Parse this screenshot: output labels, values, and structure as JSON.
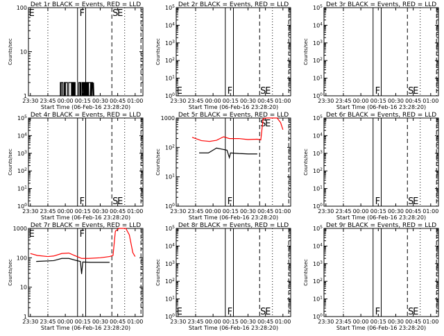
{
  "figure": {
    "x_tick_labels": [
      "23:30",
      "23:45",
      "00:00",
      "00:15",
      "00:30",
      "00:45",
      "01:00"
    ],
    "xlabel": "Start Time (06-Feb-16 23:28:20)",
    "ylabel": "Counts/sec",
    "marker_labels": {
      "F": "F",
      "S": "S",
      "E": "E"
    },
    "colors": {
      "events": "#000000",
      "lld": "#ff0000",
      "background": "#ffffff"
    }
  },
  "chart_data": [
    {
      "id": "det1r",
      "type": "line",
      "title": "Det 1r BLACK = Events, RED = LLD",
      "yscale": "log",
      "ylim": [
        1,
        100
      ],
      "ytick_labels": [
        "1",
        "10",
        "100"
      ],
      "markers": [
        "E",
        "F",
        "S",
        "E"
      ],
      "series": [
        {
          "name": "Events",
          "color": "#000000",
          "kind": "noisy-binary",
          "x_range_min": [
            -5,
            23
          ],
          "low": 1,
          "high": 2
        }
      ]
    },
    {
      "id": "det2r",
      "type": "line",
      "title": "Det 2r BLACK = Events, RED = LLD",
      "yscale": "log",
      "ylim": [
        1,
        100000
      ],
      "ytick_labels": [
        "10^0",
        "10^1",
        "10^2",
        "10^3",
        "10^4",
        "10^5"
      ],
      "markers": [
        "E",
        "F",
        "S",
        "E"
      ],
      "series": []
    },
    {
      "id": "det3r",
      "type": "line",
      "title": "Det 3r BLACK = Events, RED = LLD",
      "yscale": "log",
      "ylim": [
        1,
        100000
      ],
      "ytick_labels": [
        "10^0",
        "10^1",
        "10^2",
        "10^3",
        "10^4",
        "10^5"
      ],
      "markers": [
        "F",
        "S",
        "E"
      ],
      "series": []
    },
    {
      "id": "det4r",
      "type": "line",
      "title": "Det 4r BLACK = Events, RED = LLD",
      "yscale": "log",
      "ylim": [
        1,
        100000
      ],
      "ytick_labels": [
        "10^0",
        "10^1",
        "10^2",
        "10^3",
        "10^4",
        "10^5"
      ],
      "markers": [
        "F",
        "S",
        "E"
      ],
      "series": []
    },
    {
      "id": "det5r",
      "type": "line",
      "title": "Det 5r BLACK = Events, RED = LLD",
      "yscale": "log",
      "ylim": [
        1,
        1000
      ],
      "ytick_labels": [
        "10^0",
        "10^1",
        "10^2",
        "1000"
      ],
      "markers": [
        "F",
        "S",
        "E"
      ],
      "series": [
        {
          "name": "LLD",
          "color": "#ff0000",
          "points": [
            [
              -18,
              220
            ],
            [
              -10,
              170
            ],
            [
              -3,
              160
            ],
            [
              3,
              175
            ],
            [
              9,
              230
            ],
            [
              14,
              200
            ],
            [
              22,
              200
            ],
            [
              30,
              185
            ],
            [
              38,
              190
            ],
            [
              41,
              180
            ],
            [
              43,
              950
            ],
            [
              46,
              1000
            ],
            [
              55,
              1000
            ],
            [
              58,
              700
            ],
            [
              60,
              400
            ]
          ]
        },
        {
          "name": "Events",
          "color": "#000000",
          "points": [
            [
              -12,
              65
            ],
            [
              -4,
              65
            ],
            [
              3,
              95
            ],
            [
              7,
              88
            ],
            [
              12,
              80
            ],
            [
              13,
              60
            ],
            [
              14,
              45
            ],
            [
              15,
              65
            ],
            [
              22,
              62
            ],
            [
              30,
              60
            ],
            [
              38,
              60
            ]
          ]
        }
      ]
    },
    {
      "id": "det6r",
      "type": "line",
      "title": "Det 6r BLACK = Events, RED = LLD",
      "yscale": "log",
      "ylim": [
        1,
        100000
      ],
      "ytick_labels": [
        "10^0",
        "10^1",
        "10^2",
        "10^3",
        "10^4",
        "10^5"
      ],
      "markers": [
        "F",
        "S",
        "E"
      ],
      "series": []
    },
    {
      "id": "det7r",
      "type": "line",
      "title": "Det 7r BLACK = Events, RED = LLD",
      "yscale": "log",
      "ylim": [
        1,
        1000
      ],
      "ytick_labels": [
        "1",
        "10",
        "100",
        "1000"
      ],
      "markers": [
        "E",
        "F"
      ],
      "series": [
        {
          "name": "LLD",
          "color": "#ff0000",
          "points": [
            [
              -30,
              140
            ],
            [
              -24,
              120
            ],
            [
              -15,
              110
            ],
            [
              -10,
              115
            ],
            [
              -3,
              140
            ],
            [
              3,
              145
            ],
            [
              9,
              115
            ],
            [
              14,
              95
            ],
            [
              20,
              95
            ],
            [
              30,
              100
            ],
            [
              38,
              110
            ],
            [
              41,
              120
            ],
            [
              43,
              800
            ],
            [
              46,
              1000
            ],
            [
              52,
              1000
            ],
            [
              55,
              600
            ],
            [
              58,
              150
            ],
            [
              60,
              110
            ]
          ]
        },
        {
          "name": "Events",
          "color": "#000000",
          "points": [
            [
              -25,
              75
            ],
            [
              -10,
              80
            ],
            [
              -3,
              95
            ],
            [
              3,
              95
            ],
            [
              9,
              82
            ],
            [
              13,
              75
            ],
            [
              14,
              28
            ],
            [
              15,
              72
            ],
            [
              22,
              70
            ],
            [
              30,
              70
            ],
            [
              38,
              70
            ]
          ]
        }
      ]
    },
    {
      "id": "det8r",
      "type": "line",
      "title": "Det 8r BLACK = Events, RED = LLD",
      "yscale": "log",
      "ylim": [
        1,
        100000
      ],
      "ytick_labels": [
        "10^0",
        "10^1",
        "10^2",
        "10^3",
        "10^4",
        "10^5"
      ],
      "markers": [
        "E",
        "F",
        "S",
        "E"
      ],
      "series": []
    },
    {
      "id": "det9r",
      "type": "line",
      "title": "Det 9r BLACK = Events, RED = LLD",
      "yscale": "log",
      "ylim": [
        1,
        100000
      ],
      "ytick_labels": [
        "10^0",
        "10^1",
        "10^2",
        "10^3",
        "10^4",
        "10^5"
      ],
      "markers": [
        "F",
        "S",
        "E"
      ],
      "series": []
    }
  ]
}
